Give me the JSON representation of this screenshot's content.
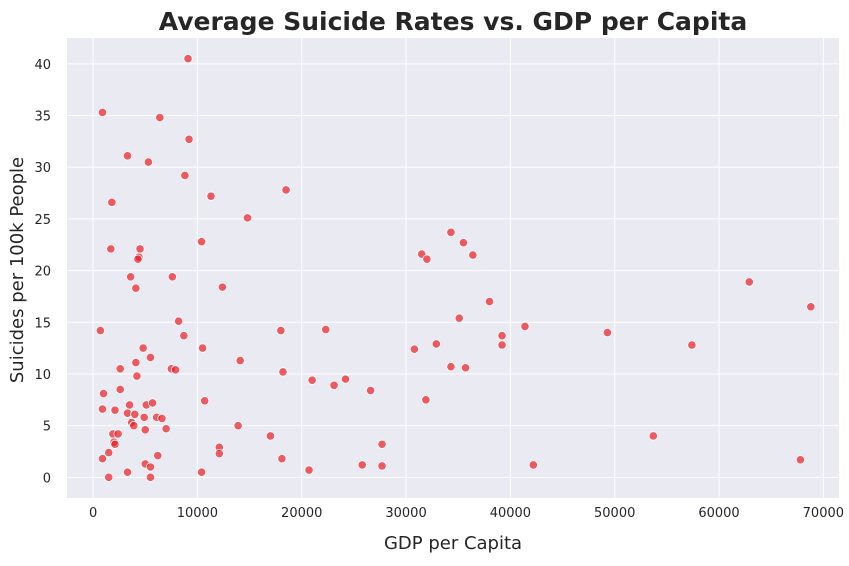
{
  "chart_data": {
    "type": "scatter",
    "title": "Average Suicide Rates vs. GDP per Capita",
    "xlabel": "GDP per Capita",
    "ylabel": "Suicides per 100k People",
    "xlim": [
      -2500,
      71500
    ],
    "ylim": [
      -2,
      42.5
    ],
    "xticks": [
      0,
      10000,
      20000,
      30000,
      40000,
      50000,
      60000,
      70000
    ],
    "yticks": [
      0,
      5,
      10,
      15,
      20,
      25,
      30,
      35,
      40
    ],
    "grid": true,
    "legend": "none",
    "colors": {
      "point": "#ec1c24",
      "background": "#eaeaf2",
      "grid": "#ffffff",
      "text": "#262626"
    },
    "points": [
      [
        900,
        35.3
      ],
      [
        3300,
        31.1
      ],
      [
        6400,
        34.8
      ],
      [
        9100,
        40.5
      ],
      [
        9200,
        32.7
      ],
      [
        5300,
        30.5
      ],
      [
        8800,
        29.2
      ],
      [
        1800,
        26.6
      ],
      [
        11300,
        27.2
      ],
      [
        18500,
        27.8
      ],
      [
        14800,
        25.1
      ],
      [
        10400,
        22.8
      ],
      [
        1700,
        22.1
      ],
      [
        4500,
        22.1
      ],
      [
        4400,
        21.3
      ],
      [
        4300,
        21.1
      ],
      [
        3600,
        19.4
      ],
      [
        7600,
        19.4
      ],
      [
        4100,
        18.3
      ],
      [
        12400,
        18.4
      ],
      [
        8200,
        15.1
      ],
      [
        700,
        14.2
      ],
      [
        8700,
        13.7
      ],
      [
        18000,
        14.2
      ],
      [
        22300,
        14.3
      ],
      [
        4800,
        12.5
      ],
      [
        10500,
        12.5
      ],
      [
        5500,
        11.6
      ],
      [
        4100,
        11.1
      ],
      [
        14100,
        11.3
      ],
      [
        2600,
        10.5
      ],
      [
        7500,
        10.5
      ],
      [
        7900,
        10.4
      ],
      [
        4200,
        9.8
      ],
      [
        18200,
        10.2
      ],
      [
        21000,
        9.4
      ],
      [
        24200,
        9.5
      ],
      [
        23100,
        8.9
      ],
      [
        26600,
        8.4
      ],
      [
        2600,
        8.5
      ],
      [
        1000,
        8.1
      ],
      [
        10700,
        7.4
      ],
      [
        3500,
        7.0
      ],
      [
        5100,
        7.0
      ],
      [
        5700,
        7.2
      ],
      [
        900,
        6.6
      ],
      [
        2100,
        6.5
      ],
      [
        3300,
        6.2
      ],
      [
        4000,
        6.1
      ],
      [
        4900,
        5.8
      ],
      [
        6100,
        5.8
      ],
      [
        6600,
        5.7
      ],
      [
        3700,
        5.3
      ],
      [
        3900,
        5.0
      ],
      [
        7000,
        4.7
      ],
      [
        5000,
        4.6
      ],
      [
        13900,
        5.0
      ],
      [
        1900,
        4.2
      ],
      [
        2400,
        4.2
      ],
      [
        17000,
        4.0
      ],
      [
        2000,
        3.4
      ],
      [
        2100,
        3.2
      ],
      [
        12100,
        2.9
      ],
      [
        1500,
        2.4
      ],
      [
        6200,
        2.1
      ],
      [
        12100,
        2.3
      ],
      [
        18100,
        1.8
      ],
      [
        900,
        1.8
      ],
      [
        5000,
        1.3
      ],
      [
        5500,
        1.0
      ],
      [
        3300,
        0.5
      ],
      [
        10400,
        0.5
      ],
      [
        20700,
        0.7
      ],
      [
        1500,
        0.0
      ],
      [
        5500,
        0.0
      ],
      [
        27700,
        3.2
      ],
      [
        25800,
        1.2
      ],
      [
        27700,
        1.1
      ],
      [
        31500,
        21.6
      ],
      [
        32000,
        21.1
      ],
      [
        34300,
        23.7
      ],
      [
        35500,
        22.7
      ],
      [
        36400,
        21.5
      ],
      [
        38000,
        17.0
      ],
      [
        35100,
        15.4
      ],
      [
        41400,
        14.6
      ],
      [
        39200,
        13.7
      ],
      [
        39200,
        12.8
      ],
      [
        32900,
        12.9
      ],
      [
        30800,
        12.4
      ],
      [
        34300,
        10.7
      ],
      [
        35700,
        10.6
      ],
      [
        31900,
        7.5
      ],
      [
        49300,
        14.0
      ],
      [
        57400,
        12.8
      ],
      [
        62900,
        18.9
      ],
      [
        68800,
        16.5
      ],
      [
        53700,
        4.0
      ],
      [
        42200,
        1.2
      ],
      [
        67800,
        1.7
      ]
    ]
  }
}
